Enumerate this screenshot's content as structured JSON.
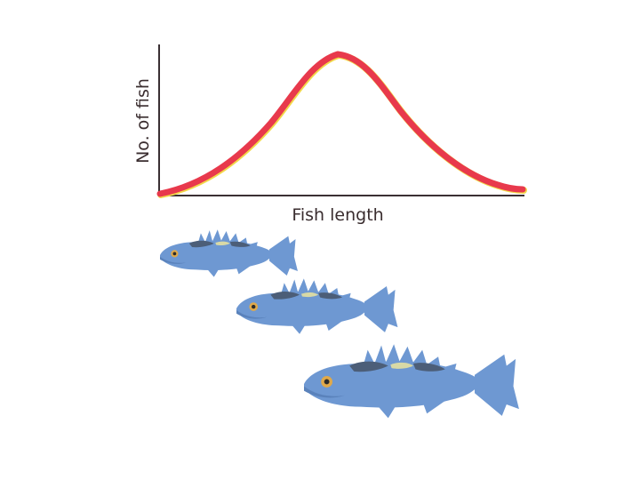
{
  "diagram": {
    "ylabel": "No. of fish",
    "xlabel": "Fish length",
    "curve_type": "bell-shaped (normal distribution)",
    "fish_count": 3,
    "fish_sizes": [
      "small",
      "medium",
      "large"
    ]
  },
  "colors": {
    "axis": "#3a3033",
    "curve": "#e8394c",
    "curve_highlight": "#f2d84a",
    "fish_body": "#6e98d2",
    "fish_dark": "#4c5e78",
    "fish_eye": "#e0a94a",
    "background": "#ffffff"
  }
}
